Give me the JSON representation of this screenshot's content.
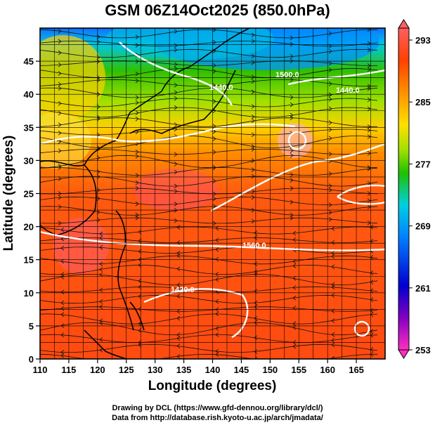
{
  "title": "GSM 06Z14Oct2025 (850.0hPa)",
  "credits": [
    "Drawing by DCL (https://www.gfd-dennou.org/library/dcl/)",
    "Data from http://database.rish.kyoto-u.ac.jp/arch/jmadata/"
  ],
  "axes": {
    "x_label": "Longitude (degrees)",
    "y_label": "Latitude  (degrees)",
    "x_range": [
      110,
      170
    ],
    "y_range": [
      0,
      50
    ],
    "x_ticks": [
      "110",
      "115",
      "120",
      "125",
      "130",
      "135",
      "140",
      "145",
      "150",
      "155",
      "160",
      "165"
    ],
    "y_ticks": [
      "0",
      "5",
      "10",
      "15",
      "20",
      "25",
      "30",
      "35",
      "40",
      "45"
    ],
    "grid": true
  },
  "colorbar": {
    "range": [
      253,
      293
    ],
    "labels": [
      "293",
      "285",
      "277",
      "269",
      "261",
      "253"
    ],
    "placement": "right"
  },
  "contour_labels": [
    "1560.0",
    "1440.0",
    "1440.0",
    "1500.0",
    "1420.0"
  ]
}
